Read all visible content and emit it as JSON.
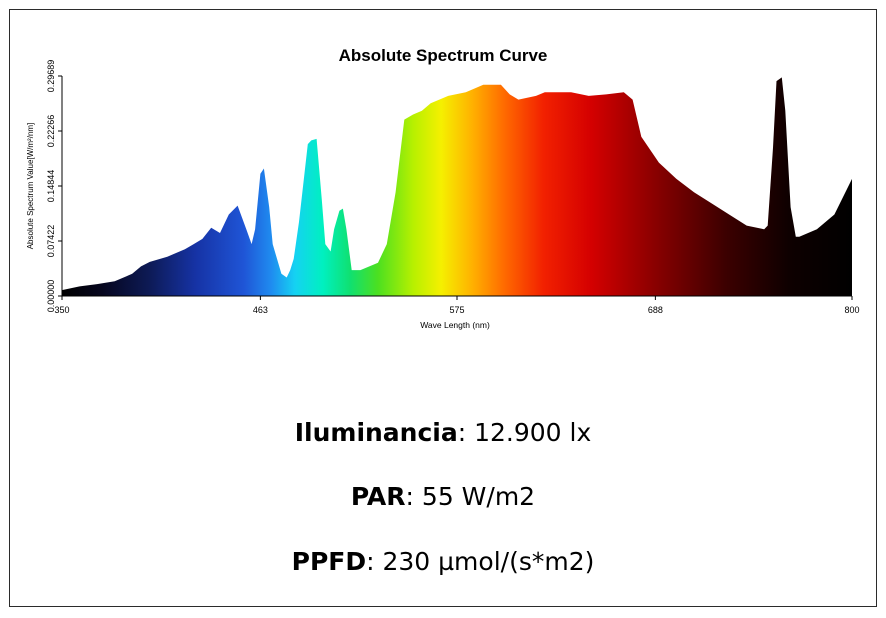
{
  "chart_data": {
    "type": "area",
    "title": "Absolute Spectrum Curve",
    "xlabel": "Wave Length (nm)",
    "ylabel": "Absolute Spectrum Value[W/m²/nm]",
    "xlim": [
      350,
      800
    ],
    "ylim": [
      0,
      0.29689
    ],
    "xticks": [
      "350",
      "463",
      "575",
      "688",
      "800"
    ],
    "yticks": [
      "0.00000",
      "0.07422",
      "0.14844",
      "0.22266",
      "0.29689"
    ],
    "grid": false,
    "legend": "none",
    "series": [
      {
        "x": [
          350,
          360,
          370,
          380,
          390,
          395,
          400,
          410,
          420,
          425,
          430,
          435,
          440,
          445,
          450,
          455,
          458,
          460,
          463,
          465,
          468,
          470,
          475,
          478,
          480,
          482,
          485,
          490,
          492,
          495,
          498,
          500,
          503,
          505,
          508,
          510,
          512,
          515,
          520,
          530,
          535,
          540,
          545,
          550,
          555,
          560,
          570,
          580,
          590,
          600,
          605,
          610,
          620,
          625,
          630,
          640,
          650,
          660,
          670,
          675,
          680,
          690,
          700,
          710,
          720,
          730,
          740,
          750,
          752,
          755,
          757,
          760,
          762,
          765,
          768,
          770,
          780,
          790,
          800
        ],
        "values": [
          0.008,
          0.013,
          0.016,
          0.02,
          0.03,
          0.04,
          0.046,
          0.053,
          0.063,
          0.07,
          0.077,
          0.092,
          0.085,
          0.11,
          0.122,
          0.09,
          0.07,
          0.09,
          0.165,
          0.172,
          0.12,
          0.07,
          0.03,
          0.025,
          0.035,
          0.05,
          0.1,
          0.205,
          0.21,
          0.212,
          0.13,
          0.07,
          0.06,
          0.09,
          0.115,
          0.118,
          0.09,
          0.035,
          0.035,
          0.045,
          0.07,
          0.14,
          0.238,
          0.245,
          0.25,
          0.26,
          0.27,
          0.275,
          0.285,
          0.285,
          0.272,
          0.265,
          0.27,
          0.275,
          0.275,
          0.275,
          0.27,
          0.272,
          0.275,
          0.265,
          0.215,
          0.18,
          0.158,
          0.14,
          0.125,
          0.11,
          0.095,
          0.09,
          0.095,
          0.2,
          0.29,
          0.295,
          0.25,
          0.12,
          0.08,
          0.08,
          0.09,
          0.11,
          0.158
        ]
      }
    ]
  },
  "stats": [
    {
      "label": "Iluminancia",
      "value": ": 12.900 lx"
    },
    {
      "label": "PAR",
      "value": ": 55 W/m2"
    },
    {
      "label": "PPFD",
      "value": ": 230 µmol/(s*m2)"
    }
  ]
}
